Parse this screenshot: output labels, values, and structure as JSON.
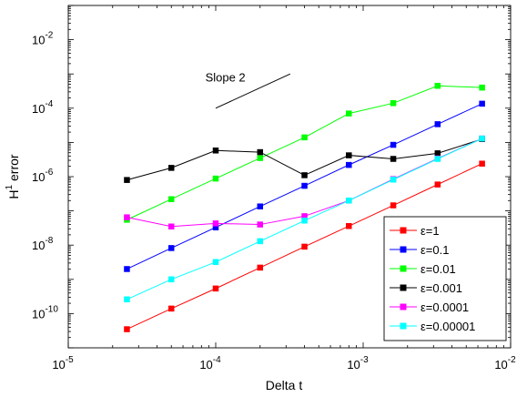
{
  "chart_data": {
    "type": "line",
    "title": "",
    "xlabel": "Delta t",
    "ylabel_base": "H",
    "ylabel_sup": "1",
    "ylabel_rest": " error",
    "xscale": "log",
    "yscale": "log",
    "xlim": [
      1e-05,
      0.01
    ],
    "ylim": [
      1e-11,
      0.1
    ],
    "grid": false,
    "legend_position": "bottom-right",
    "x_ticks": [
      {
        "value": 1e-05,
        "base": "10",
        "exp": "-5"
      },
      {
        "value": 0.0001,
        "base": "10",
        "exp": "-4"
      },
      {
        "value": 0.001,
        "base": "10",
        "exp": "-3"
      },
      {
        "value": 0.01,
        "base": "10",
        "exp": "-2"
      }
    ],
    "y_ticks": [
      {
        "value": 1e-10,
        "base": "10",
        "exp": "-10"
      },
      {
        "value": 1e-08,
        "base": "10",
        "exp": "-8"
      },
      {
        "value": 1e-06,
        "base": "10",
        "exp": "-6"
      },
      {
        "value": 0.0001,
        "base": "10",
        "exp": "-4"
      },
      {
        "value": 0.01,
        "base": "10",
        "exp": "-2"
      }
    ],
    "x": [
      2.5e-05,
      5e-05,
      0.0001,
      0.0002,
      0.0004,
      0.0008,
      0.0016,
      0.0032,
      0.0064
    ],
    "series": [
      {
        "name": "ε=1",
        "color": "#ff0000",
        "values": [
          3.5e-11,
          1.4e-10,
          5.4e-10,
          2.2e-09,
          9e-09,
          3.6e-08,
          1.45e-07,
          5.9e-07,
          2.4e-06
        ]
      },
      {
        "name": "ε=0.1",
        "color": "#0000ff",
        "values": [
          2e-09,
          8.2e-09,
          3.3e-08,
          1.35e-07,
          5.4e-07,
          2.2e-06,
          8.5e-06,
          3.4e-05,
          0.000135
        ]
      },
      {
        "name": "ε=0.01",
        "color": "#00ff00",
        "values": [
          5.5e-08,
          2.2e-07,
          8.8e-07,
          3.5e-06,
          1.4e-05,
          7e-05,
          0.00014,
          0.00045,
          0.0004
        ]
      },
      {
        "name": "ε=0.001",
        "color": "#000000",
        "values": [
          8e-07,
          1.8e-06,
          5.8e-06,
          5.2e-06,
          1.1e-06,
          4.2e-06,
          3.3e-06,
          4.8e-06,
          1.25e-05
        ]
      },
      {
        "name": "ε=0.0001",
        "color": "#ff00ff",
        "values": [
          6.5e-08,
          3.5e-08,
          4.3e-08,
          4e-08,
          7e-08,
          2e-07,
          8.5e-07,
          3.4e-06,
          1.3e-05
        ]
      },
      {
        "name": "ε=0.00001",
        "color": "#00ffff",
        "values": [
          2.6e-10,
          1e-09,
          3.2e-09,
          1.3e-08,
          5.2e-08,
          2e-07,
          8.2e-07,
          3.3e-06,
          1.3e-05
        ]
      }
    ],
    "annotation": {
      "text": "Slope 2",
      "line": {
        "x": [
          0.0001,
          0.00032
        ],
        "y": [
          0.0001,
          0.001
        ]
      },
      "label_at": {
        "x": 8.5e-05,
        "y": 0.0006
      }
    }
  }
}
